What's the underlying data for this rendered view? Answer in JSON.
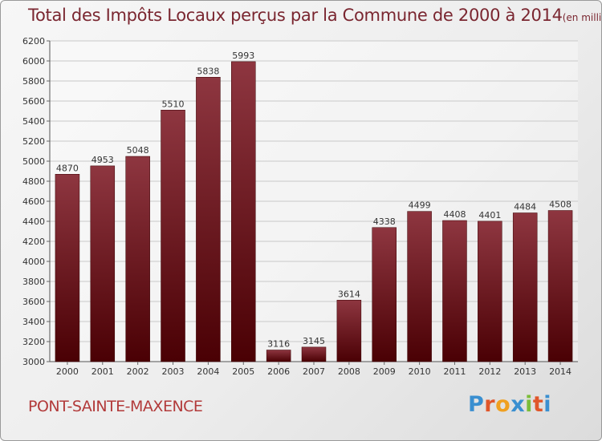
{
  "chart_data": {
    "type": "bar",
    "title": "Total des Impôts Locaux perçus par la Commune de 2000 à 2014",
    "unit": "(en milliers d'€)",
    "categories": [
      "2000",
      "2001",
      "2002",
      "2003",
      "2004",
      "2005",
      "2006",
      "2007",
      "2008",
      "2009",
      "2010",
      "2011",
      "2012",
      "2013",
      "2014"
    ],
    "values": [
      4870,
      4953,
      5048,
      5510,
      5838,
      5993,
      3116,
      3145,
      3614,
      4338,
      4499,
      4408,
      4401,
      4484,
      4508
    ],
    "ylim": [
      3000,
      6200
    ],
    "yticks": [
      3000,
      3200,
      3400,
      3600,
      3800,
      4000,
      4200,
      4400,
      4600,
      4800,
      5000,
      5200,
      5400,
      5600,
      5800,
      6000,
      6200
    ],
    "xlabel": "",
    "ylabel": "",
    "grid": true,
    "bar_color": "#6e1520"
  },
  "commune": "PONT-SAINTE-MAXENCE",
  "logo": {
    "letters": [
      "P",
      "r",
      "o",
      "x",
      "i",
      "t",
      "i"
    ],
    "colors": [
      "#3a8fd0",
      "#e0562a",
      "#f0a020",
      "#3a8fd0",
      "#7bbd3a",
      "#e0562a",
      "#3a8fd0"
    ]
  }
}
